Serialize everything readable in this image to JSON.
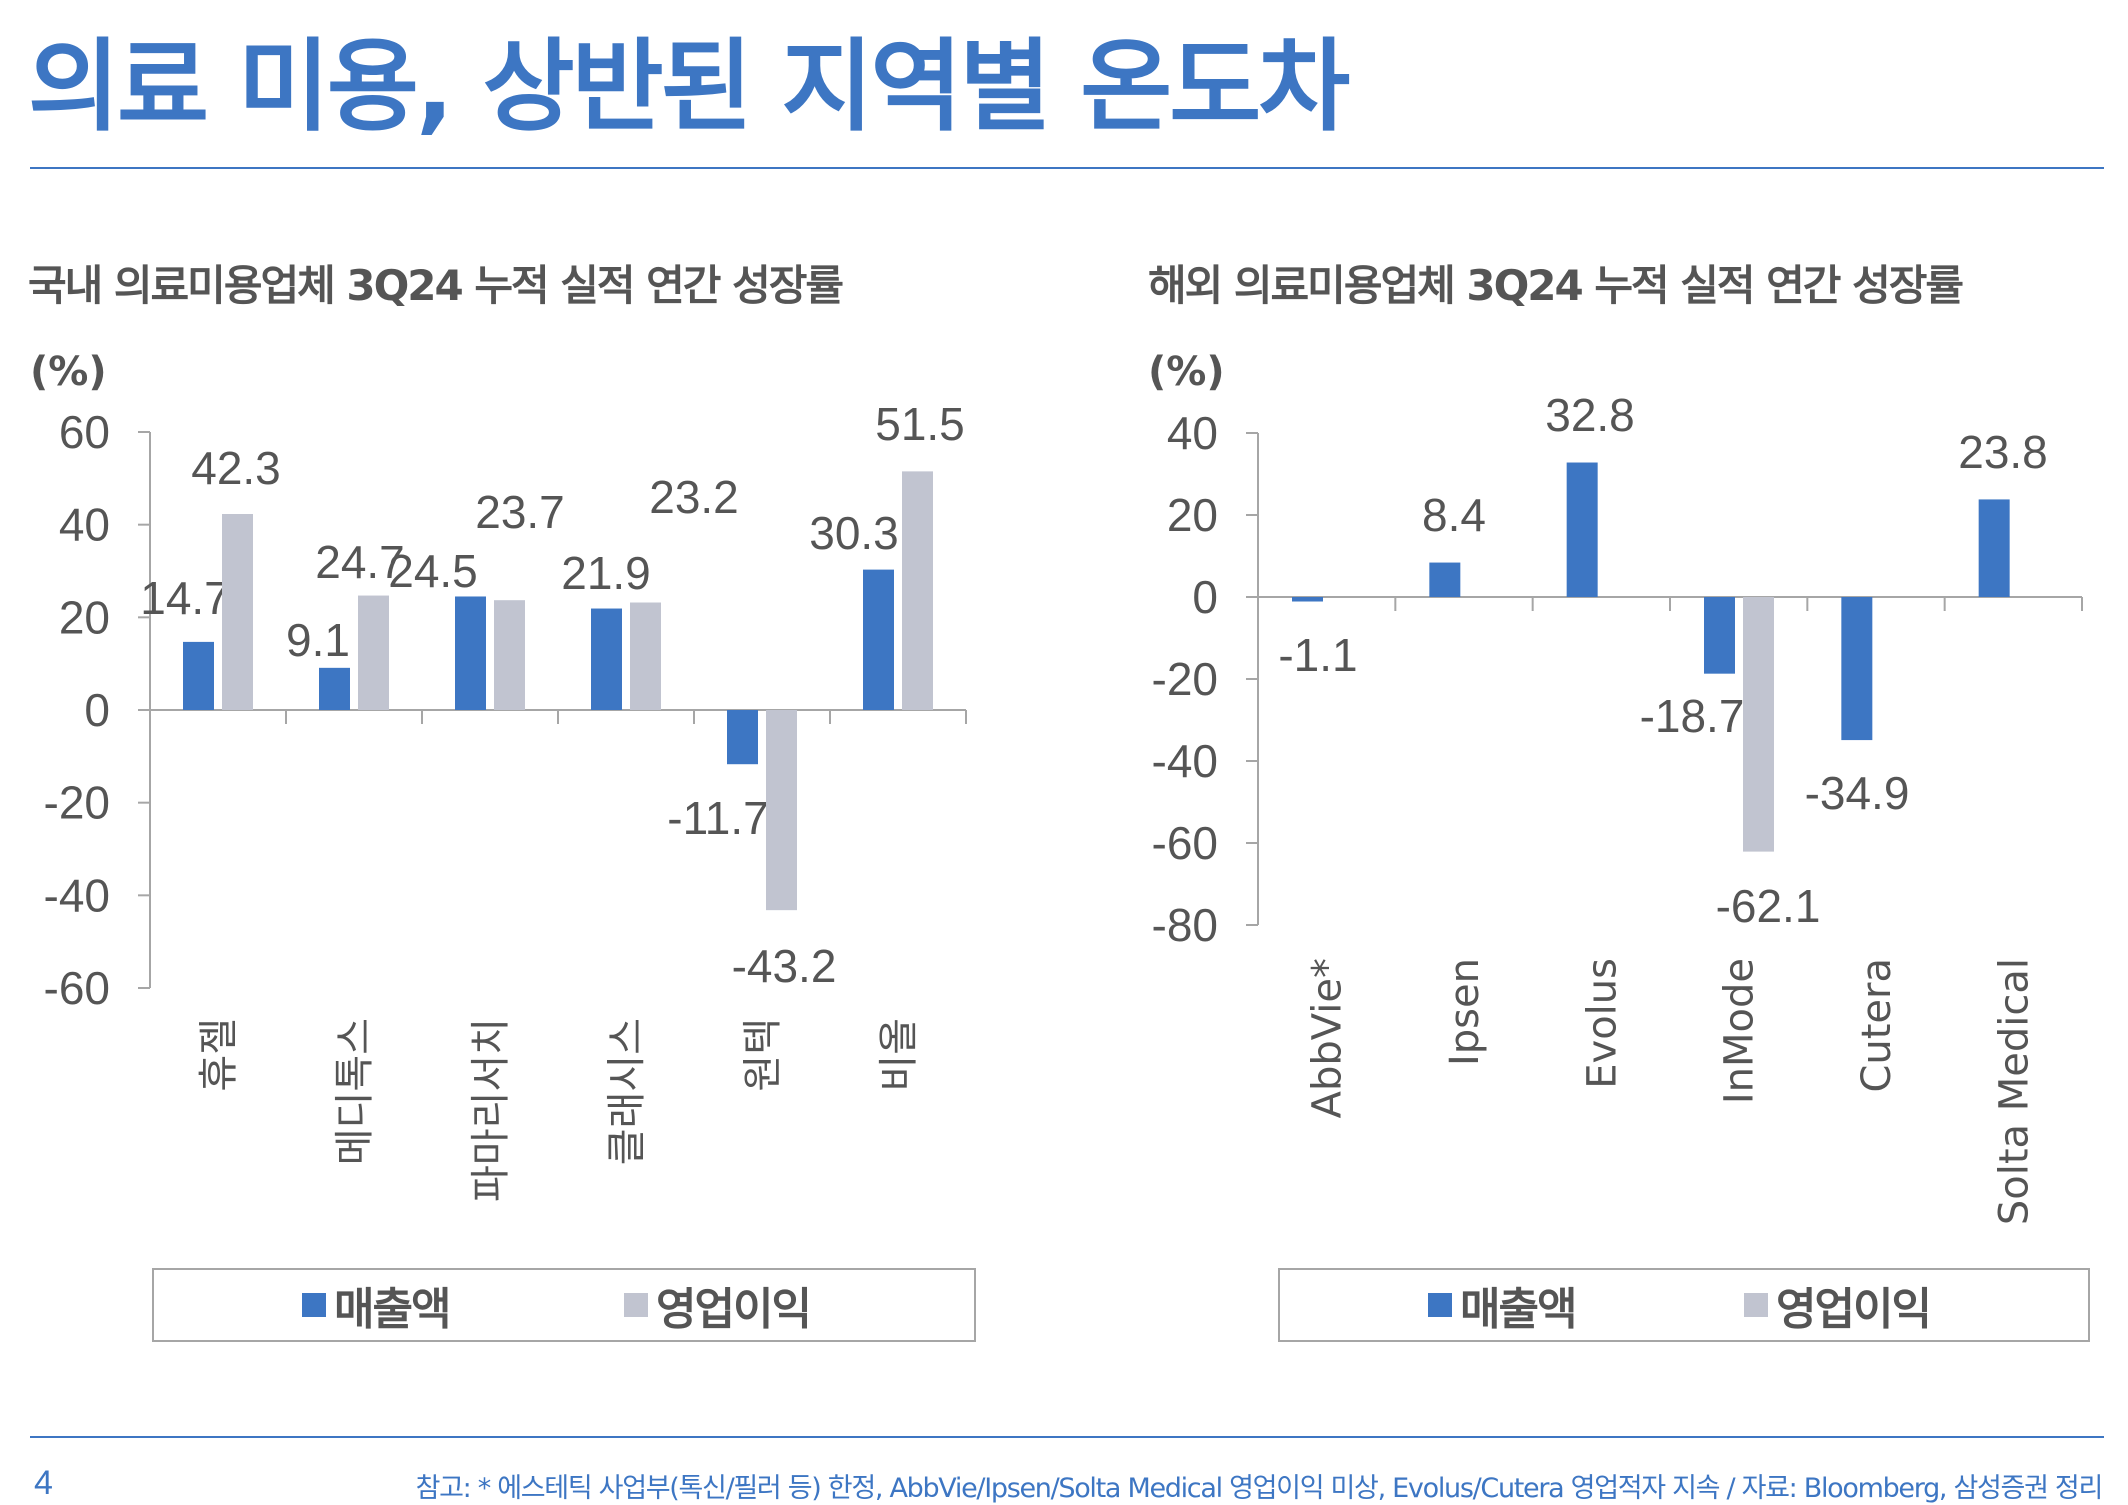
{
  "page": {
    "title": "의료 미용, 상반된 지역별 온도차",
    "page_number": "4",
    "footnote": "참고: * 에스테틱 사업부(톡신/필러 등) 한정, AbbVie/Ipsen/Solta Medical 영업이익 미상, Evolus/Cutera 영업적자 지속 / 자료: Bloomberg, 삼성증권 정리",
    "colors": {
      "accent": "#3d76c3",
      "text": "#555555"
    }
  },
  "chart_data": [
    {
      "type": "bar",
      "title": "국내 의료미용업체 3Q24 누적 실적 연간 성장률",
      "ylabel": "(%)",
      "xlabel": "",
      "ylim": [
        -60,
        60
      ],
      "yticks": [
        60,
        40,
        20,
        0,
        -20,
        -40,
        -60
      ],
      "categories": [
        "휴젤",
        "메디톡스",
        "파마리서치",
        "클래시스",
        "원텍",
        "비올"
      ],
      "series": [
        {
          "name": "매출액",
          "color": "#3d76c3",
          "values": [
            14.7,
            9.1,
            24.5,
            21.9,
            -11.7,
            30.3
          ]
        },
        {
          "name": "영업이익",
          "color": "#c1c4d0",
          "values": [
            42.3,
            24.7,
            23.7,
            23.2,
            -43.2,
            51.5
          ]
        }
      ],
      "legend": "bottom",
      "grid": false
    },
    {
      "type": "bar",
      "title": "해외 의료미용업체 3Q24 누적 실적 연간 성장률",
      "ylabel": "(%)",
      "xlabel": "",
      "ylim": [
        -80,
        40
      ],
      "yticks": [
        40,
        20,
        0,
        -20,
        -40,
        -60,
        -80
      ],
      "categories": [
        "AbbVie*",
        "Ipsen",
        "Evolus",
        "InMode",
        "Cutera",
        "Solta Medical"
      ],
      "series": [
        {
          "name": "매출액",
          "color": "#3d76c3",
          "values": [
            -1.1,
            8.4,
            32.8,
            -18.7,
            -34.9,
            23.8
          ]
        },
        {
          "name": "영업이익",
          "color": "#c1c4d0",
          "values": [
            null,
            null,
            null,
            -62.1,
            null,
            null
          ]
        }
      ],
      "legend": "bottom",
      "grid": false
    }
  ]
}
